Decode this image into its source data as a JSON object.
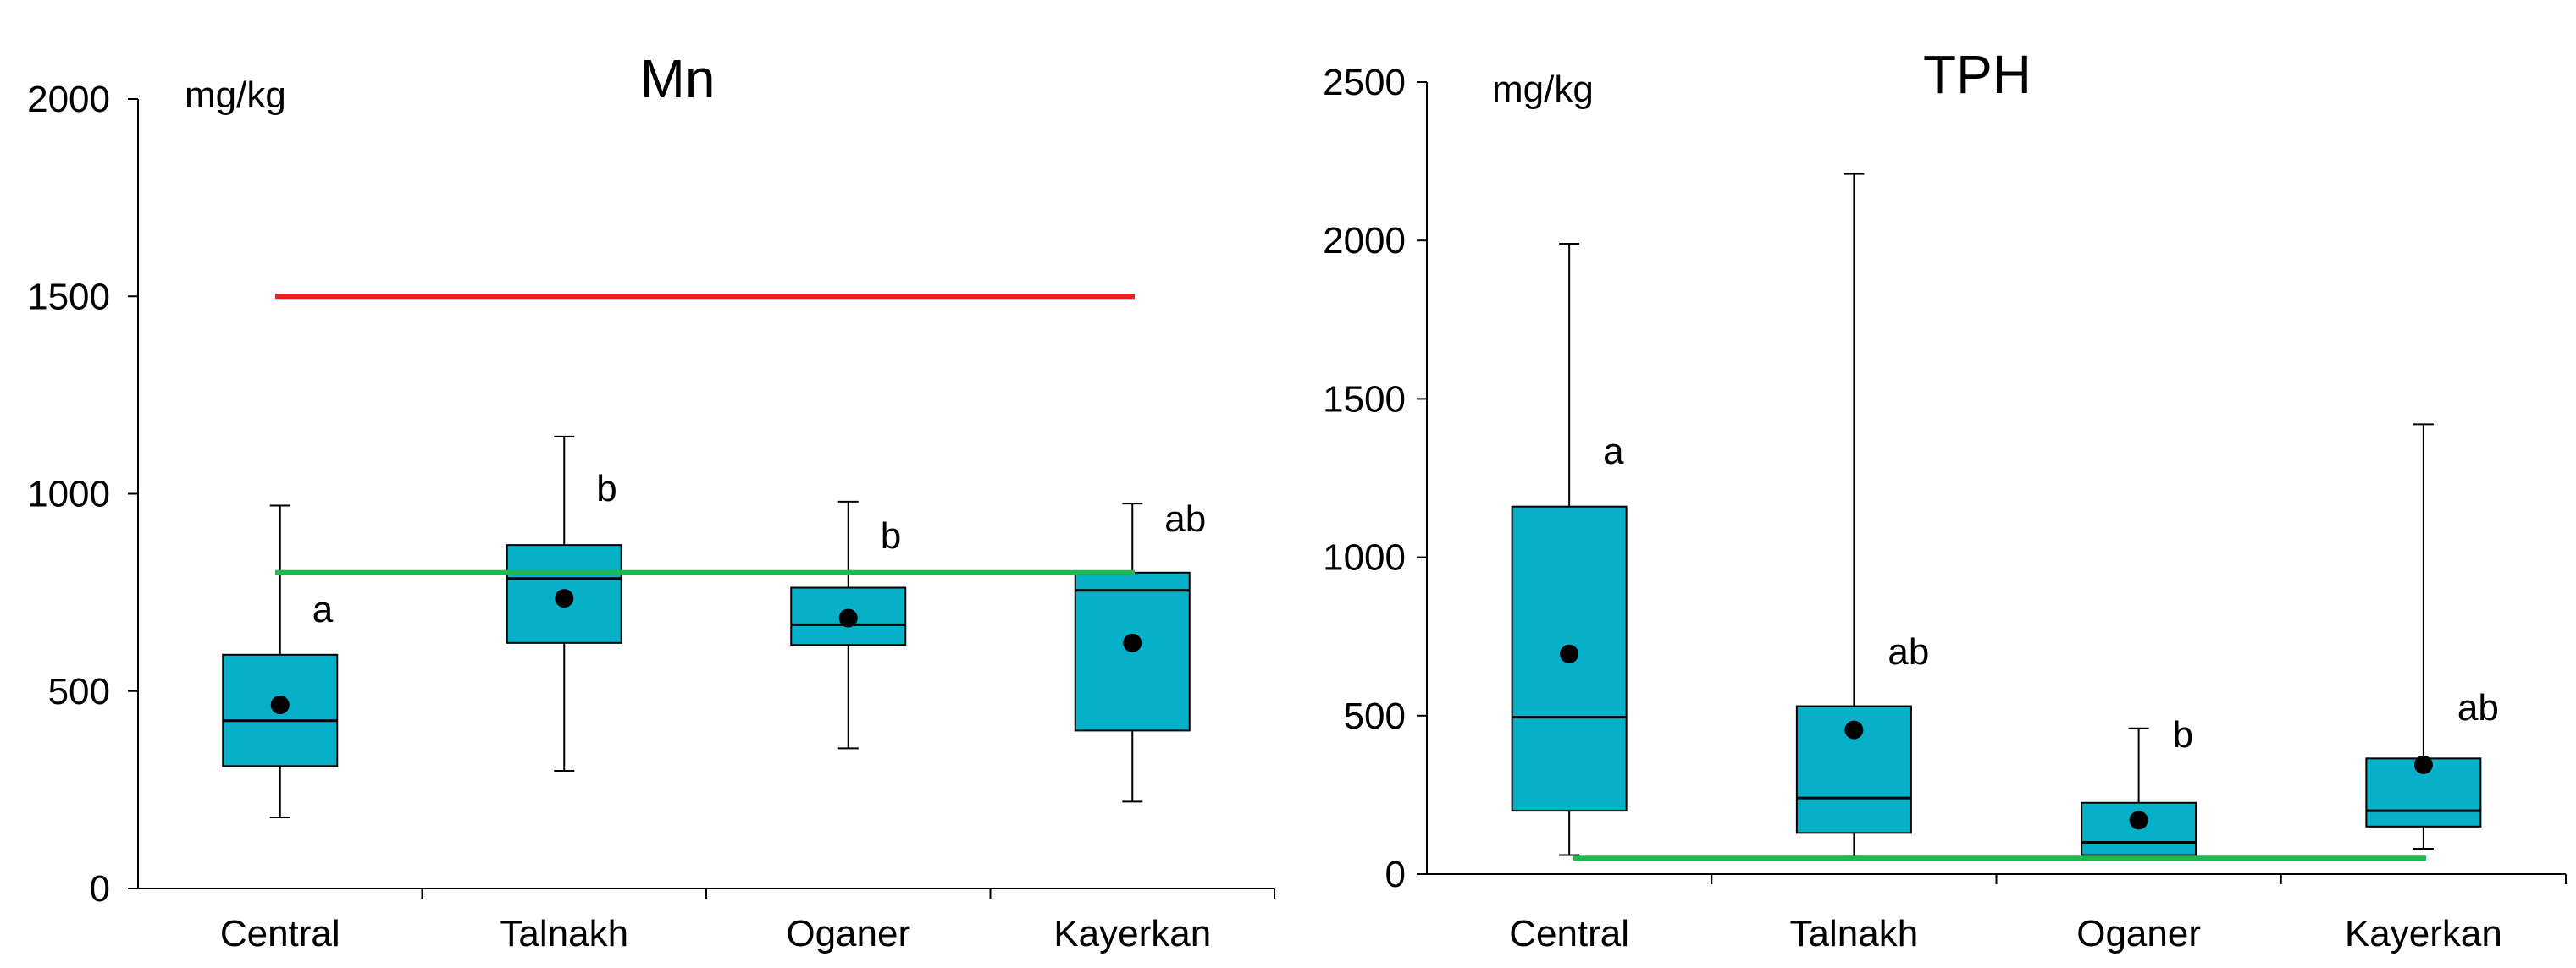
{
  "chart_data": [
    {
      "type": "box",
      "title": "Mn",
      "unit": "mg/kg",
      "ylim": [
        0,
        2000
      ],
      "yticks": [
        0,
        500,
        1000,
        1500,
        2000
      ],
      "categories": [
        "Central",
        "Talnakh",
        "Oganer",
        "Kayerkan"
      ],
      "boxes": [
        {
          "min": 180,
          "q1": 310,
          "median": 425,
          "q3": 592,
          "max": 970,
          "mean": 465,
          "letter": "a"
        },
        {
          "min": 298,
          "q1": 622,
          "median": 785,
          "q3": 870,
          "max": 1145,
          "mean": 735,
          "letter": "b"
        },
        {
          "min": 355,
          "q1": 617,
          "median": 668,
          "q3": 762,
          "max": 980,
          "mean": 685,
          "letter": "b"
        },
        {
          "min": 220,
          "q1": 400,
          "median": 755,
          "q3": 800,
          "max": 975,
          "mean": 622,
          "letter": "ab"
        }
      ],
      "reference_lines": [
        {
          "value": 1500,
          "color": "#e8211d"
        },
        {
          "value": 800,
          "color": "#1fb84e"
        }
      ]
    },
    {
      "type": "box",
      "title": "TPH",
      "unit": "mg/kg",
      "ylim": [
        0,
        2500
      ],
      "yticks": [
        0,
        500,
        1000,
        1500,
        2000,
        2500
      ],
      "categories": [
        "Central",
        "Talnakh",
        "Oganer",
        "Kayerkan"
      ],
      "boxes": [
        {
          "min": 60,
          "q1": 200,
          "median": 495,
          "q3": 1160,
          "max": 1990,
          "mean": 695,
          "letter": "a"
        },
        {
          "min": 55,
          "q1": 130,
          "median": 240,
          "q3": 530,
          "max": 2210,
          "mean": 455,
          "letter": "ab"
        },
        {
          "min": 50,
          "q1": 60,
          "median": 100,
          "q3": 225,
          "max": 460,
          "mean": 170,
          "letter": "b"
        },
        {
          "min": 80,
          "q1": 150,
          "median": 200,
          "q3": 365,
          "max": 1420,
          "mean": 345,
          "letter": "ab"
        }
      ],
      "reference_lines": [
        {
          "value": 50,
          "color": "#1fb84e"
        }
      ]
    }
  ],
  "colors": {
    "box_fill": "#07b0c9",
    "outline": "#000000"
  }
}
